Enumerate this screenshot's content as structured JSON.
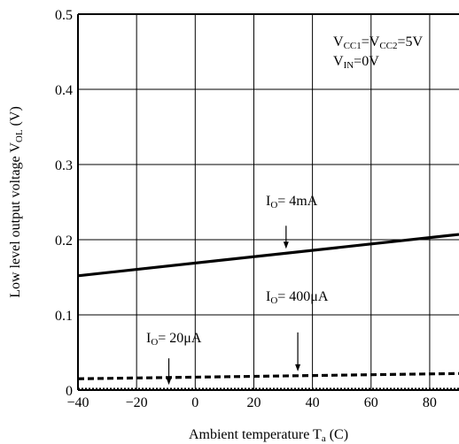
{
  "chart_data": {
    "type": "line",
    "xlabel": {
      "main": "Ambient temperature T",
      "sub": "a",
      "tail": " (C)"
    },
    "ylabel": {
      "main": "Low level output voltage V",
      "sub": "OL",
      "tail": " (V)"
    },
    "xlim": [
      -40,
      90
    ],
    "ylim": [
      0,
      0.5
    ],
    "xticks": [
      -40,
      -20,
      0,
      20,
      40,
      60,
      80
    ],
    "yticks": [
      0,
      0.1,
      0.2,
      0.3,
      0.4,
      0.5
    ],
    "xtick_labels": [
      "−40",
      "−20",
      "0",
      "20",
      "40",
      "60",
      "80"
    ],
    "ytick_labels": [
      "0",
      "0.1",
      "0.2",
      "0.3",
      "0.4",
      "0.5"
    ],
    "grid": true,
    "conditions": [
      {
        "parts": [
          [
            "V",
            ""
          ],
          [
            "CC1",
            "sub"
          ],
          [
            "=V",
            ""
          ],
          [
            "CC2",
            "sub"
          ],
          [
            "=5V",
            ""
          ]
        ]
      },
      {
        "parts": [
          [
            "V",
            ""
          ],
          [
            "IN",
            "sub"
          ],
          [
            "=0V",
            ""
          ]
        ]
      }
    ],
    "series": [
      {
        "name": "I_O= 4mA",
        "label_parts": [
          [
            "I",
            ""
          ],
          [
            "O",
            "sub"
          ],
          [
            "= 4mA",
            ""
          ]
        ],
        "style": "solid",
        "x": [
          -40,
          90
        ],
        "y": [
          0.152,
          0.207
        ],
        "arrow_x": 31
      },
      {
        "name": "I_O= 400μA",
        "label_parts": [
          [
            "I",
            ""
          ],
          [
            "O",
            "sub"
          ],
          [
            "= 400μA",
            ""
          ]
        ],
        "style": "dashed",
        "x": [
          -40,
          90
        ],
        "y": [
          0.015,
          0.022
        ],
        "arrow_x": 35
      },
      {
        "name": "I_O= 20μA",
        "label_parts": [
          [
            "I",
            ""
          ],
          [
            "O",
            "sub"
          ],
          [
            "= 20μA",
            ""
          ]
        ],
        "style": "dotted",
        "x": [
          -40,
          90
        ],
        "y": [
          0.001,
          0.001
        ],
        "arrow_x": -9
      }
    ]
  }
}
